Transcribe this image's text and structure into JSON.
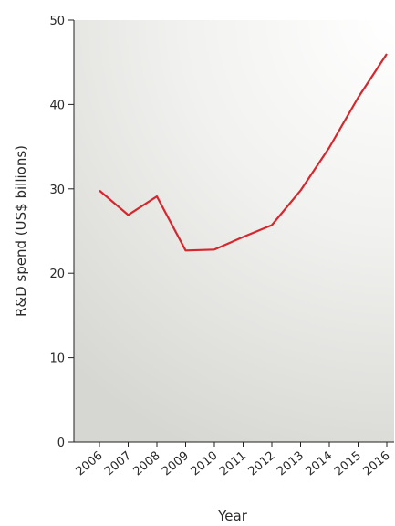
{
  "chart_data": {
    "type": "line",
    "title": "",
    "xlabel": "Year",
    "ylabel": "R&D spend (US$ billions)",
    "x": [
      "2006",
      "2007",
      "2008",
      "2009",
      "2010",
      "2011",
      "2012",
      "2013",
      "2014",
      "2015",
      "2016"
    ],
    "series": [
      {
        "values": [
          29.8,
          26.9,
          29.1,
          22.7,
          22.8,
          24.3,
          25.7,
          29.8,
          34.9,
          40.8,
          46.0
        ]
      }
    ],
    "ylim": [
      0,
      50
    ],
    "yticks": [
      "0",
      "10",
      "20",
      "30",
      "40",
      "50"
    ],
    "grid": false,
    "line_color": "#d7262d"
  }
}
